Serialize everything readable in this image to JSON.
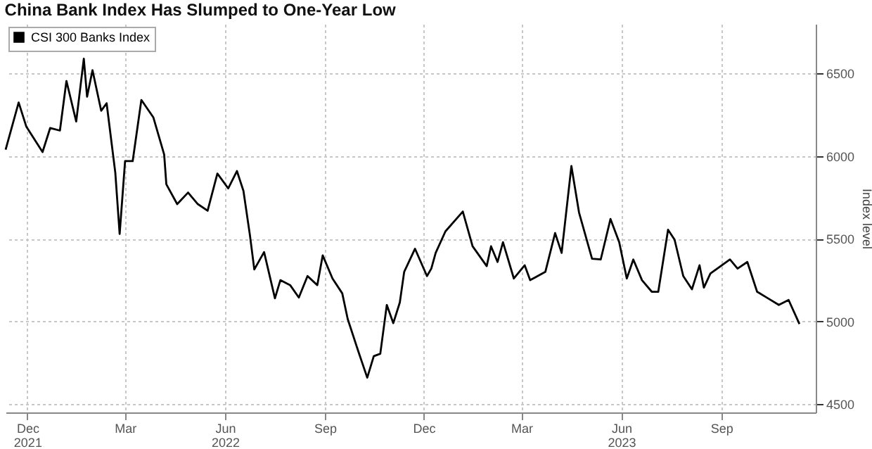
{
  "chart_data": {
    "type": "line",
    "title": "China Bank Index Has Slumped to One-Year Low",
    "ylabel": "Index level",
    "x": [
      "2021-11-25",
      "2021-12-07",
      "2021-12-14",
      "2021-12-29",
      "2022-01-05",
      "2022-01-14",
      "2022-01-20",
      "2022-01-29",
      "2022-02-05",
      "2022-02-08",
      "2022-02-13",
      "2022-02-21",
      "2022-02-26",
      "2022-03-06",
      "2022-03-10",
      "2022-03-15",
      "2022-03-22",
      "2022-03-30",
      "2022-04-10",
      "2022-04-20",
      "2022-04-22",
      "2022-05-02",
      "2022-05-12",
      "2022-05-21",
      "2022-05-30",
      "2022-06-08",
      "2022-06-18",
      "2022-06-26",
      "2022-07-02",
      "2022-07-08",
      "2022-07-12",
      "2022-07-21",
      "2022-07-31",
      "2022-08-05",
      "2022-08-14",
      "2022-08-22",
      "2022-08-30",
      "2022-09-08",
      "2022-09-13",
      "2022-09-22",
      "2022-10-01",
      "2022-10-06",
      "2022-10-16",
      "2022-10-24",
      "2022-10-30",
      "2022-11-05",
      "2022-11-11",
      "2022-11-17",
      "2022-11-23",
      "2022-11-27",
      "2022-12-07",
      "2022-12-18",
      "2022-12-22",
      "2022-12-26",
      "2023-01-04",
      "2023-01-20",
      "2023-01-29",
      "2023-02-11",
      "2023-02-15",
      "2023-02-21",
      "2023-02-26",
      "2023-03-08",
      "2023-03-18",
      "2023-03-23",
      "2023-04-06",
      "2023-04-15",
      "2023-04-21",
      "2023-04-30",
      "2023-05-07",
      "2023-05-19",
      "2023-05-27",
      "2023-06-05",
      "2023-06-13",
      "2023-06-20",
      "2023-06-26",
      "2023-07-04",
      "2023-07-13",
      "2023-07-19",
      "2023-07-28",
      "2023-08-03",
      "2023-08-11",
      "2023-08-19",
      "2023-08-26",
      "2023-08-30",
      "2023-09-05",
      "2023-09-23",
      "2023-09-30",
      "2023-10-09",
      "2023-10-18",
      "2023-10-28",
      "2023-11-07",
      "2023-11-16",
      "2023-11-26"
    ],
    "series": [
      {
        "name": "CSI 300 Banks Index",
        "color": "#000000",
        "values": [
          6040,
          6325,
          6180,
          6025,
          6170,
          6155,
          6455,
          6210,
          6590,
          6360,
          6520,
          6275,
          6320,
          5900,
          5530,
          5970,
          5970,
          6340,
          6235,
          6010,
          5830,
          5710,
          5780,
          5710,
          5670,
          5895,
          5805,
          5910,
          5790,
          5520,
          5315,
          5420,
          5140,
          5250,
          5220,
          5145,
          5275,
          5220,
          5400,
          5260,
          5170,
          5015,
          4815,
          4660,
          4790,
          4805,
          5100,
          4990,
          5115,
          5300,
          5440,
          5275,
          5320,
          5415,
          5545,
          5665,
          5455,
          5335,
          5455,
          5360,
          5480,
          5260,
          5340,
          5250,
          5300,
          5535,
          5415,
          5940,
          5660,
          5380,
          5375,
          5620,
          5480,
          5260,
          5375,
          5250,
          5180,
          5180,
          5555,
          5495,
          5275,
          5195,
          5340,
          5205,
          5290,
          5375,
          5320,
          5360,
          5180,
          5140,
          5100,
          5130,
          4985
        ]
      }
    ],
    "xlim": [
      "2021-11-25",
      "2023-12-11"
    ],
    "xticks": [
      {
        "value": "2021-12-15",
        "label": "Dec 2021"
      },
      {
        "value": "2022-03-15",
        "label": "Mar"
      },
      {
        "value": "2022-06-15",
        "label": "Jun 2022"
      },
      {
        "value": "2022-09-15",
        "label": "Sep"
      },
      {
        "value": "2022-12-15",
        "label": "Dec"
      },
      {
        "value": "2023-03-15",
        "label": "Mar"
      },
      {
        "value": "2023-06-15",
        "label": "Jun 2023"
      },
      {
        "value": "2023-09-15",
        "label": "Sep"
      }
    ],
    "ylim": [
      4450,
      6800
    ],
    "yticks": [
      4500,
      5000,
      5500,
      6000,
      6500
    ],
    "grid": true,
    "legend": "top left"
  }
}
